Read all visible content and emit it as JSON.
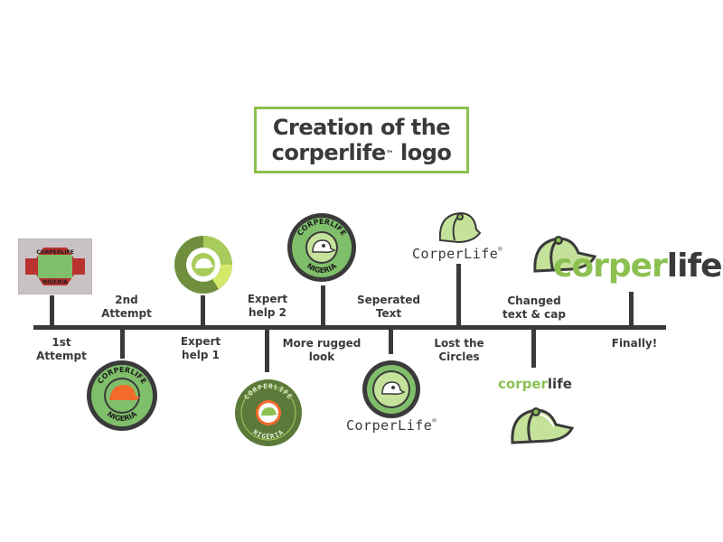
{
  "title": {
    "line1": "Creation of the",
    "line2_word": "corperlife",
    "line2_tm": "™",
    "line2_rest": " logo"
  },
  "labels": [
    {
      "line1": "1st",
      "line2": "Attempt"
    },
    {
      "line1": "2nd",
      "line2": "Attempt"
    },
    {
      "line1": "Expert",
      "line2": "help 1"
    },
    {
      "line1": "Expert",
      "line2": "help 2"
    },
    {
      "line1": "More rugged",
      "line2": "look"
    },
    {
      "line1": "Seperated",
      "line2": "Text"
    },
    {
      "line1": "Lost the",
      "line2": "Circles"
    },
    {
      "line1": "Changed",
      "line2": "text & cap"
    },
    {
      "line1": "Finally!",
      "line2": ""
    }
  ],
  "logos": {
    "badge_top": "CORPERLIFE",
    "badge_bottom": "NIGERIA",
    "attempt1_top": "CORPERLIFE",
    "attempt1_bottom": "NIGERIA",
    "wordmark_caps": "CorperLife",
    "wordmark_reg": "®",
    "small_corper": "corper",
    "small_life": "life",
    "final_corper": "corper",
    "final_life": "life"
  },
  "colors": {
    "dark": "#3a3a3a",
    "green": "#8cc152",
    "light_green": "#c5e29a",
    "olive": "#5b7a3a",
    "orange": "#f26b2a"
  }
}
